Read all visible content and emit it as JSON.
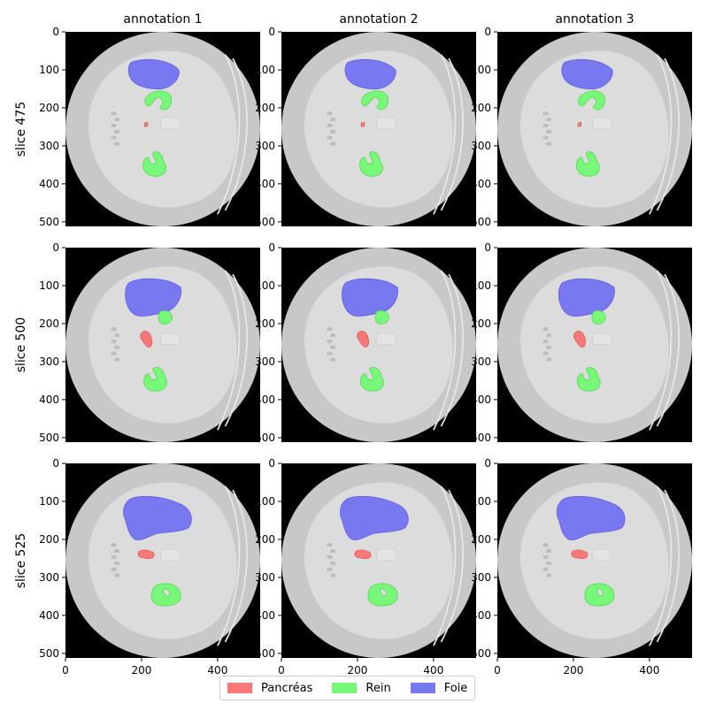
{
  "chart_data": {
    "type": "heatmap",
    "columns": [
      "annotation 1",
      "annotation 2",
      "annotation 3"
    ],
    "rows": [
      "slice 475",
      "slice 500",
      "slice 525"
    ],
    "xticks": [
      0,
      200,
      400
    ],
    "yticks": [
      0,
      100,
      200,
      300,
      400,
      500
    ],
    "xlim": [
      0,
      512
    ],
    "ylim": [
      512,
      0
    ],
    "legend_position": "bottom-center",
    "legend": [
      {
        "label": "Pancréas",
        "color": "#f87878"
      },
      {
        "label": "Rein",
        "color": "#78f878"
      },
      {
        "label": "Foie",
        "color": "#7878f0"
      }
    ],
    "colors": {
      "background": "#000000",
      "body": "#c8c8c8",
      "tissue": "#dcdcdc",
      "bone": "#bdbdbd"
    }
  }
}
